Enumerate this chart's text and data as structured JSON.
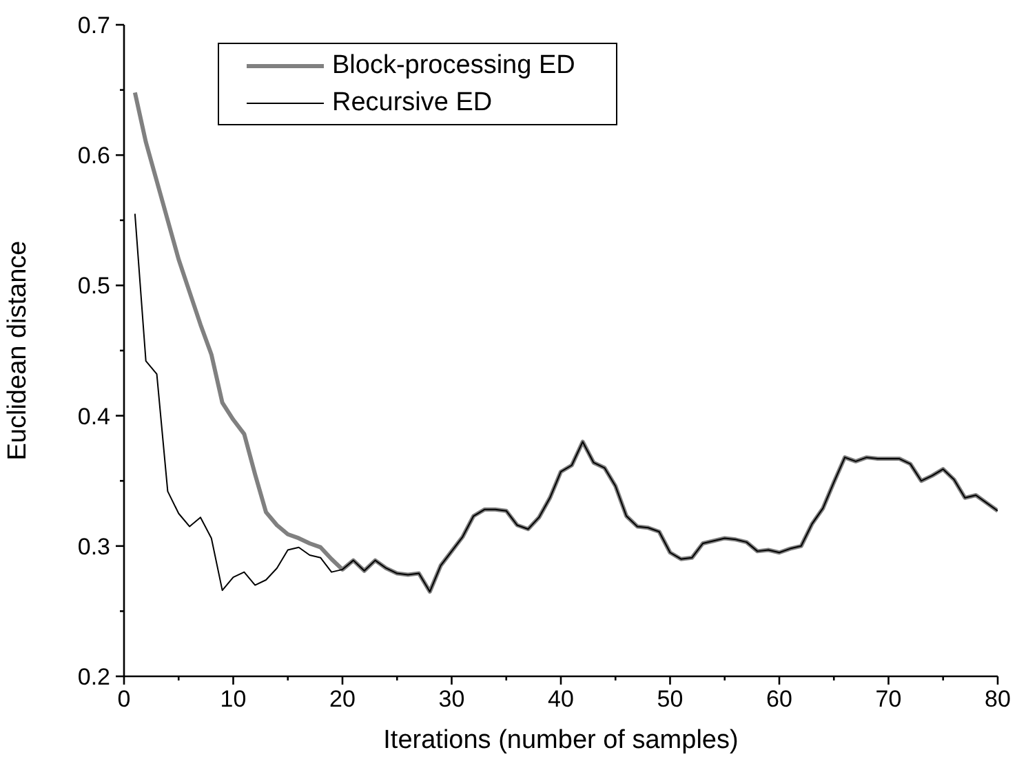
{
  "chart_data": {
    "type": "line",
    "xlabel": "Iterations (number of samples)",
    "ylabel": "Euclidean distance",
    "x": [
      1,
      2,
      3,
      4,
      5,
      6,
      7,
      8,
      9,
      10,
      11,
      12,
      13,
      14,
      15,
      16,
      17,
      18,
      19,
      20,
      21,
      22,
      23,
      24,
      25,
      26,
      27,
      28,
      29,
      30,
      31,
      32,
      33,
      34,
      35,
      36,
      37,
      38,
      39,
      40,
      41,
      42,
      43,
      44,
      45,
      46,
      47,
      48,
      49,
      50,
      51,
      52,
      53,
      54,
      55,
      56,
      57,
      58,
      59,
      60,
      61,
      62,
      63,
      64,
      65,
      66,
      67,
      68,
      69,
      70,
      71,
      72,
      73,
      74,
      75,
      76,
      77,
      78,
      79,
      80
    ],
    "series": [
      {
        "name": "Block-processing ED",
        "color": "#808080",
        "values": [
          0.648,
          0.61,
          0.58,
          0.55,
          0.52,
          0.495,
          0.47,
          0.447,
          0.41,
          0.397,
          0.386,
          0.355,
          0.326,
          0.316,
          0.309,
          0.306,
          0.302,
          0.299,
          0.29,
          0.282,
          0.289,
          0.281,
          0.289,
          0.283,
          0.279,
          0.278,
          0.279,
          0.265,
          0.285,
          0.296,
          0.307,
          0.323,
          0.328,
          0.328,
          0.327,
          0.316,
          0.313,
          0.322,
          0.337,
          0.357,
          0.362,
          0.38,
          0.364,
          0.36,
          0.346,
          0.323,
          0.315,
          0.314,
          0.311,
          0.295,
          0.29,
          0.291,
          0.302,
          0.304,
          0.306,
          0.305,
          0.303,
          0.296,
          0.297,
          0.295,
          0.298,
          0.3,
          0.317,
          0.329,
          0.349,
          0.368,
          0.365,
          0.368,
          0.367,
          0.367,
          0.367,
          0.363,
          0.35,
          0.354,
          0.359,
          0.351,
          0.337,
          0.339,
          0.333,
          0.327
        ]
      },
      {
        "name": "Recursive ED",
        "color": "#000000",
        "values": [
          0.555,
          0.442,
          0.432,
          0.342,
          0.325,
          0.315,
          0.322,
          0.306,
          0.266,
          0.276,
          0.28,
          0.27,
          0.274,
          0.283,
          0.297,
          0.299,
          0.293,
          0.291,
          0.28,
          0.282,
          0.289,
          0.281,
          0.289,
          0.283,
          0.279,
          0.278,
          0.279,
          0.265,
          0.285,
          0.296,
          0.307,
          0.323,
          0.328,
          0.328,
          0.327,
          0.316,
          0.313,
          0.322,
          0.337,
          0.357,
          0.362,
          0.38,
          0.364,
          0.36,
          0.346,
          0.323,
          0.315,
          0.314,
          0.311,
          0.295,
          0.29,
          0.291,
          0.302,
          0.304,
          0.306,
          0.305,
          0.303,
          0.296,
          0.297,
          0.295,
          0.298,
          0.3,
          0.317,
          0.329,
          0.349,
          0.368,
          0.365,
          0.368,
          0.367,
          0.367,
          0.367,
          0.363,
          0.35,
          0.354,
          0.359,
          0.351,
          0.337,
          0.339,
          0.333,
          0.327
        ]
      }
    ],
    "xlim": [
      0,
      80
    ],
    "xticks": [
      0,
      {
        "value": 5,
        "label": null
      },
      10,
      {
        "value": 15,
        "label": null
      },
      20,
      {
        "value": 25,
        "label": null
      },
      30,
      {
        "value": 35,
        "label": null
      },
      40,
      {
        "value": 45,
        "label": null
      },
      50,
      {
        "value": 55,
        "label": null
      },
      60,
      {
        "value": 65,
        "label": null
      },
      70,
      {
        "value": 75,
        "label": null
      },
      80
    ],
    "ylim": [
      0.2,
      0.7
    ],
    "yticks": [
      0.2,
      {
        "value": 0.25,
        "label": null
      },
      0.3,
      {
        "value": 0.35,
        "label": null
      },
      0.4,
      {
        "value": 0.45,
        "label": null
      },
      0.5,
      {
        "value": 0.55,
        "label": null
      },
      0.6,
      {
        "value": 0.65,
        "label": null
      },
      0.7
    ],
    "grid": false,
    "legend": "top left",
    "marker": "none",
    "line_style": "solid"
  }
}
